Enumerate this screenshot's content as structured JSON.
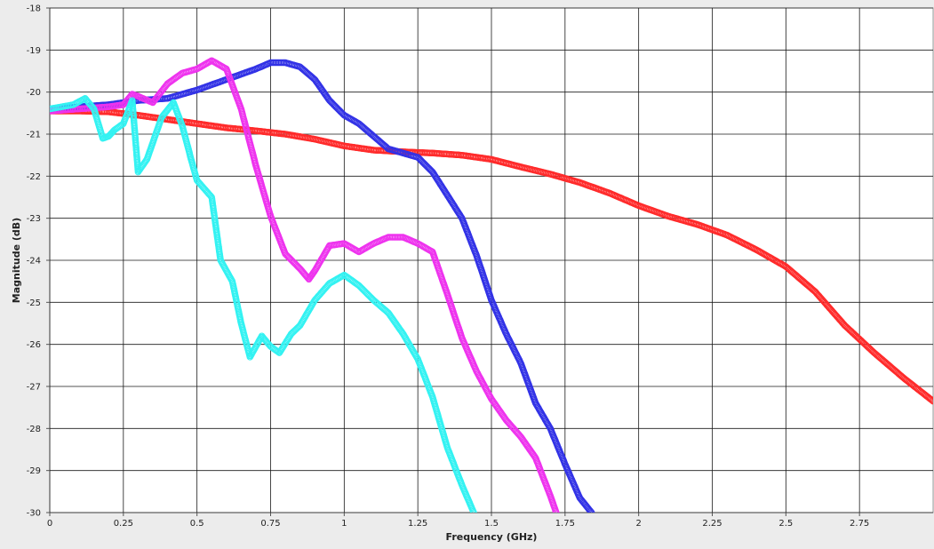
{
  "chart_data": {
    "type": "line",
    "title": "",
    "xlabel": "Frequency (GHz)",
    "ylabel": "Magnitude (dB)",
    "xlim": [
      0,
      3.0
    ],
    "ylim": [
      -30,
      -18
    ],
    "x_ticks": [
      0,
      0.25,
      0.5,
      0.75,
      1,
      1.25,
      1.5,
      1.75,
      2,
      2.25,
      2.5,
      2.75
    ],
    "x_tick_labels": [
      "0",
      "0.25",
      "0.5",
      "0.75",
      "1",
      "1.25",
      "1.5",
      "1.75",
      "2",
      "2.25",
      "2.5",
      "2.75"
    ],
    "y_ticks": [
      -30,
      -29,
      -28,
      -27,
      -26,
      -25,
      -24,
      -23,
      -22,
      -21,
      -20,
      -19,
      -18
    ],
    "y_tick_labels": [
      "-30",
      "-29",
      "-28",
      "-27",
      "-26",
      "-25",
      "-24",
      "-23",
      "-22",
      "-21",
      "-20",
      "-19",
      "-18"
    ],
    "grid": true,
    "legend": "none",
    "marker": "circle",
    "series": [
      {
        "color": "#ff2a2a",
        "x": [
          0,
          0.1,
          0.2,
          0.3,
          0.4,
          0.5,
          0.6,
          0.7,
          0.8,
          0.9,
          1.0,
          1.1,
          1.2,
          1.3,
          1.4,
          1.5,
          1.6,
          1.7,
          1.8,
          1.9,
          2.0,
          2.1,
          2.2,
          2.3,
          2.4,
          2.5,
          2.6,
          2.7,
          2.8,
          2.9,
          3.0
        ],
        "y": [
          -20.45,
          -20.45,
          -20.47,
          -20.55,
          -20.65,
          -20.75,
          -20.85,
          -20.92,
          -21.0,
          -21.12,
          -21.28,
          -21.38,
          -21.42,
          -21.45,
          -21.5,
          -21.6,
          -21.78,
          -21.95,
          -22.15,
          -22.4,
          -22.7,
          -22.95,
          -23.15,
          -23.4,
          -23.75,
          -24.15,
          -24.75,
          -25.55,
          -26.2,
          -26.8,
          -27.35
        ]
      },
      {
        "color": "#3232e6",
        "x": [
          0,
          0.1,
          0.2,
          0.3,
          0.4,
          0.5,
          0.6,
          0.7,
          0.75,
          0.8,
          0.85,
          0.9,
          0.95,
          1.0,
          1.05,
          1.1,
          1.15,
          1.2,
          1.25,
          1.3,
          1.35,
          1.4,
          1.45,
          1.5,
          1.55,
          1.6,
          1.65,
          1.7,
          1.75,
          1.8,
          1.84
        ],
        "y": [
          -20.4,
          -20.35,
          -20.3,
          -20.2,
          -20.15,
          -19.95,
          -19.7,
          -19.45,
          -19.3,
          -19.3,
          -19.4,
          -19.7,
          -20.2,
          -20.55,
          -20.75,
          -21.05,
          -21.35,
          -21.45,
          -21.55,
          -21.9,
          -22.45,
          -23.0,
          -23.9,
          -24.95,
          -25.75,
          -26.45,
          -27.4,
          -28.0,
          -28.85,
          -29.65,
          -30.0
        ]
      },
      {
        "color": "#ee33ee",
        "x": [
          0,
          0.1,
          0.2,
          0.25,
          0.28,
          0.3,
          0.35,
          0.4,
          0.45,
          0.5,
          0.55,
          0.6,
          0.65,
          0.7,
          0.75,
          0.8,
          0.85,
          0.88,
          0.9,
          0.95,
          1.0,
          1.05,
          1.1,
          1.15,
          1.2,
          1.25,
          1.3,
          1.35,
          1.4,
          1.45,
          1.5,
          1.55,
          1.6,
          1.65,
          1.7,
          1.72
        ],
        "y": [
          -20.45,
          -20.4,
          -20.35,
          -20.3,
          -20.05,
          -20.1,
          -20.25,
          -19.8,
          -19.55,
          -19.45,
          -19.25,
          -19.45,
          -20.4,
          -21.75,
          -22.95,
          -23.85,
          -24.2,
          -24.45,
          -24.25,
          -23.65,
          -23.6,
          -23.8,
          -23.6,
          -23.45,
          -23.45,
          -23.6,
          -23.8,
          -24.8,
          -25.85,
          -26.65,
          -27.3,
          -27.8,
          -28.2,
          -28.7,
          -29.6,
          -30.0
        ]
      },
      {
        "color": "#33f2f2",
        "x": [
          0,
          0.08,
          0.12,
          0.15,
          0.18,
          0.2,
          0.22,
          0.25,
          0.28,
          0.3,
          0.33,
          0.38,
          0.42,
          0.45,
          0.48,
          0.5,
          0.55,
          0.58,
          0.62,
          0.65,
          0.68,
          0.72,
          0.75,
          0.78,
          0.82,
          0.85,
          0.9,
          0.95,
          1.0,
          1.05,
          1.1,
          1.15,
          1.2,
          1.25,
          1.3,
          1.35,
          1.4,
          1.44
        ],
        "y": [
          -20.4,
          -20.3,
          -20.15,
          -20.4,
          -21.1,
          -21.05,
          -20.9,
          -20.75,
          -20.2,
          -21.9,
          -21.6,
          -20.6,
          -20.25,
          -20.8,
          -21.6,
          -22.1,
          -22.5,
          -24.0,
          -24.5,
          -25.5,
          -26.3,
          -25.8,
          -26.05,
          -26.2,
          -25.75,
          -25.55,
          -24.95,
          -24.55,
          -24.35,
          -24.6,
          -24.95,
          -25.25,
          -25.75,
          -26.35,
          -27.25,
          -28.45,
          -29.35,
          -30.0
        ]
      }
    ]
  }
}
